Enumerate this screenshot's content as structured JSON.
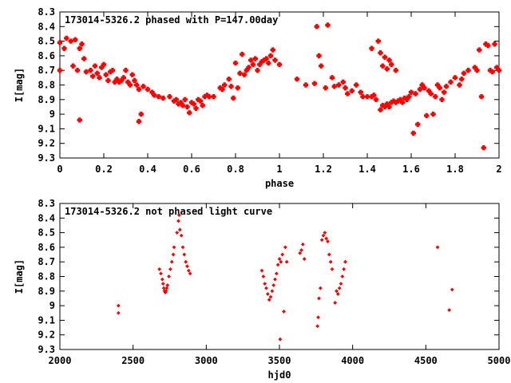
{
  "chart_data": [
    {
      "type": "scatter",
      "title": "173014-5326.2 phased with P=147.00day",
      "xlabel": "phase",
      "ylabel": "I[mag]",
      "xlim": [
        0,
        2
      ],
      "ylim": [
        8.3,
        9.3
      ],
      "y_inverted": true,
      "marker": "cross",
      "color": "#ff0000",
      "xticks": [
        0,
        0.2,
        0.4,
        0.6,
        0.8,
        1,
        1.2,
        1.4,
        1.6,
        1.8,
        2
      ],
      "xtick_labels": [
        "0",
        "0.2",
        "0.4",
        "0.6",
        "0.8",
        "1",
        "1.2",
        "1.4",
        "1.6",
        "1.8",
        "2"
      ],
      "yticks": [
        8.3,
        8.4,
        8.5,
        8.6,
        8.7,
        8.8,
        8.9,
        9.0,
        9.1,
        9.2,
        9.3
      ],
      "ytick_labels": [
        "8.3",
        "8.4",
        "8.5",
        "8.6",
        "8.7",
        "8.8",
        "8.9",
        "9",
        "9.1",
        "9.2",
        "9.3"
      ],
      "points": [
        [
          0.0,
          8.51
        ],
        [
          0.0,
          8.7
        ],
        [
          0.02,
          8.55
        ],
        [
          0.03,
          8.48
        ],
        [
          0.05,
          8.5
        ],
        [
          0.06,
          8.67
        ],
        [
          0.07,
          8.49
        ],
        [
          0.08,
          8.7
        ],
        [
          0.09,
          8.55
        ],
        [
          0.1,
          8.52
        ],
        [
          0.09,
          9.04
        ],
        [
          0.11,
          8.62
        ],
        [
          0.12,
          8.71
        ],
        [
          0.14,
          8.7
        ],
        [
          0.15,
          8.74
        ],
        [
          0.16,
          8.67
        ],
        [
          0.17,
          8.72
        ],
        [
          0.18,
          8.75
        ],
        [
          0.19,
          8.68
        ],
        [
          0.2,
          8.66
        ],
        [
          0.21,
          8.73
        ],
        [
          0.22,
          8.77
        ],
        [
          0.23,
          8.71
        ],
        [
          0.24,
          8.7
        ],
        [
          0.25,
          8.78
        ],
        [
          0.26,
          8.76
        ],
        [
          0.27,
          8.78
        ],
        [
          0.28,
          8.77
        ],
        [
          0.29,
          8.75
        ],
        [
          0.3,
          8.7
        ],
        [
          0.31,
          8.78
        ],
        [
          0.32,
          8.8
        ],
        [
          0.33,
          8.73
        ],
        [
          0.34,
          8.77
        ],
        [
          0.35,
          8.8
        ],
        [
          0.36,
          8.83
        ],
        [
          0.36,
          9.05
        ],
        [
          0.37,
          9.0
        ],
        [
          0.38,
          8.81
        ],
        [
          0.4,
          8.83
        ],
        [
          0.42,
          8.85
        ],
        [
          0.43,
          8.87
        ],
        [
          0.45,
          8.88
        ],
        [
          0.47,
          8.89
        ],
        [
          0.5,
          8.88
        ],
        [
          0.52,
          8.91
        ],
        [
          0.53,
          8.9
        ],
        [
          0.54,
          8.93
        ],
        [
          0.55,
          8.92
        ],
        [
          0.56,
          8.94
        ],
        [
          0.57,
          8.9
        ],
        [
          0.58,
          8.95
        ],
        [
          0.59,
          8.99
        ],
        [
          0.6,
          8.92
        ],
        [
          0.61,
          8.93
        ],
        [
          0.62,
          8.96
        ],
        [
          0.63,
          8.9
        ],
        [
          0.64,
          8.91
        ],
        [
          0.65,
          8.94
        ],
        [
          0.66,
          8.88
        ],
        [
          0.67,
          8.87
        ],
        [
          0.68,
          8.88
        ],
        [
          0.7,
          8.88
        ],
        [
          0.73,
          8.82
        ],
        [
          0.74,
          8.83
        ],
        [
          0.75,
          8.8
        ],
        [
          0.77,
          8.76
        ],
        [
          0.78,
          8.81
        ],
        [
          0.79,
          8.89
        ],
        [
          0.8,
          8.65
        ],
        [
          0.81,
          8.82
        ],
        [
          0.82,
          8.72
        ],
        [
          0.83,
          8.59
        ],
        [
          0.84,
          8.73
        ],
        [
          0.85,
          8.7
        ],
        [
          0.86,
          8.68
        ],
        [
          0.87,
          8.63
        ],
        [
          0.88,
          8.66
        ],
        [
          0.89,
          8.62
        ],
        [
          0.9,
          8.7
        ],
        [
          0.91,
          8.66
        ],
        [
          0.92,
          8.64
        ],
        [
          0.93,
          8.63
        ],
        [
          0.94,
          8.62
        ],
        [
          0.95,
          8.65
        ],
        [
          0.96,
          8.6
        ],
        [
          0.97,
          8.56
        ],
        [
          0.98,
          8.63
        ],
        [
          1.0,
          8.66
        ],
        [
          1.08,
          8.76
        ],
        [
          1.12,
          8.8
        ],
        [
          1.16,
          8.79
        ],
        [
          1.17,
          8.4
        ],
        [
          1.18,
          8.6
        ],
        [
          1.19,
          8.67
        ],
        [
          1.21,
          8.82
        ],
        [
          1.22,
          8.39
        ],
        [
          1.24,
          8.75
        ],
        [
          1.25,
          8.81
        ],
        [
          1.27,
          8.8
        ],
        [
          1.29,
          8.78
        ],
        [
          1.3,
          8.82
        ],
        [
          1.31,
          8.86
        ],
        [
          1.33,
          8.84
        ],
        [
          1.35,
          8.8
        ],
        [
          1.37,
          8.85
        ],
        [
          1.38,
          8.88
        ],
        [
          1.4,
          8.88
        ],
        [
          1.42,
          8.88
        ],
        [
          1.43,
          8.87
        ],
        [
          1.42,
          8.55
        ],
        [
          1.45,
          8.5
        ],
        [
          1.44,
          8.9
        ],
        [
          1.46,
          8.97
        ],
        [
          1.47,
          8.94
        ],
        [
          1.48,
          8.95
        ],
        [
          1.49,
          8.93
        ],
        [
          1.5,
          8.95
        ],
        [
          1.51,
          8.92
        ],
        [
          1.52,
          8.91
        ],
        [
          1.53,
          8.92
        ],
        [
          1.54,
          8.91
        ],
        [
          1.55,
          8.9
        ],
        [
          1.56,
          8.92
        ],
        [
          1.57,
          8.89
        ],
        [
          1.58,
          8.9
        ],
        [
          1.59,
          8.88
        ],
        [
          1.6,
          8.85
        ],
        [
          1.61,
          9.13
        ],
        [
          1.62,
          8.86
        ],
        [
          1.63,
          9.07
        ],
        [
          1.64,
          8.83
        ],
        [
          1.65,
          8.8
        ],
        [
          1.66,
          8.82
        ],
        [
          1.67,
          9.01
        ],
        [
          1.68,
          8.84
        ],
        [
          1.69,
          8.86
        ],
        [
          1.7,
          9.0
        ],
        [
          1.71,
          8.88
        ],
        [
          1.72,
          8.8
        ],
        [
          1.73,
          8.82
        ],
        [
          1.74,
          8.9
        ],
        [
          1.75,
          8.85
        ],
        [
          1.76,
          8.81
        ],
        [
          1.78,
          8.78
        ],
        [
          1.8,
          8.75
        ],
        [
          1.82,
          8.8
        ],
        [
          1.83,
          8.76
        ],
        [
          1.84,
          8.72
        ],
        [
          1.86,
          8.7
        ],
        [
          1.89,
          8.68
        ],
        [
          1.9,
          8.7
        ],
        [
          1.91,
          8.56
        ],
        [
          1.92,
          8.88
        ],
        [
          1.93,
          9.23
        ],
        [
          1.94,
          8.52
        ],
        [
          1.95,
          8.53
        ],
        [
          1.96,
          8.7
        ],
        [
          1.97,
          8.71
        ],
        [
          1.98,
          8.52
        ],
        [
          1.99,
          8.68
        ],
        [
          2.0,
          8.7
        ],
        [
          1.47,
          8.67
        ],
        [
          1.49,
          8.69
        ],
        [
          1.51,
          8.66
        ],
        [
          1.53,
          8.7
        ],
        [
          1.46,
          8.58
        ],
        [
          1.48,
          8.61
        ],
        [
          1.5,
          8.63
        ]
      ]
    },
    {
      "type": "scatter",
      "title": "173014-5326.2 not phased light curve",
      "xlabel": "hjd0",
      "ylabel": "I[mag]",
      "xlim": [
        2000,
        5000
      ],
      "ylim": [
        8.3,
        9.3
      ],
      "y_inverted": true,
      "marker": "diamond",
      "color": "#ff0000",
      "xticks": [
        2000,
        2500,
        3000,
        3500,
        4000,
        4500,
        5000
      ],
      "xtick_labels": [
        "2000",
        "2500",
        "3000",
        "3500",
        "4000",
        "4500",
        "5000"
      ],
      "yticks": [
        8.3,
        8.4,
        8.5,
        8.6,
        8.7,
        8.8,
        8.9,
        9.0,
        9.1,
        9.2,
        9.3
      ],
      "ytick_labels": [
        "8.3",
        "8.4",
        "8.5",
        "8.6",
        "8.7",
        "8.8",
        "8.9",
        "9",
        "9.1",
        "9.2",
        "9.3"
      ],
      "points": [
        [
          2400,
          9.0
        ],
        [
          2400,
          9.05
        ],
        [
          2680,
          8.75
        ],
        [
          2690,
          8.78
        ],
        [
          2700,
          8.82
        ],
        [
          2705,
          8.85
        ],
        [
          2710,
          8.88
        ],
        [
          2715,
          8.9
        ],
        [
          2720,
          8.91
        ],
        [
          2725,
          8.9
        ],
        [
          2730,
          8.88
        ],
        [
          2735,
          8.86
        ],
        [
          2745,
          8.8
        ],
        [
          2755,
          8.75
        ],
        [
          2765,
          8.7
        ],
        [
          2775,
          8.65
        ],
        [
          2780,
          8.6
        ],
        [
          2800,
          8.5
        ],
        [
          2810,
          8.42
        ],
        [
          2815,
          8.38
        ],
        [
          2820,
          8.48
        ],
        [
          2830,
          8.52
        ],
        [
          2840,
          8.6
        ],
        [
          2850,
          8.65
        ],
        [
          2860,
          8.7
        ],
        [
          2870,
          8.73
        ],
        [
          2880,
          8.76
        ],
        [
          2890,
          8.78
        ],
        [
          3380,
          8.76
        ],
        [
          3390,
          8.8
        ],
        [
          3400,
          8.85
        ],
        [
          3410,
          8.88
        ],
        [
          3420,
          8.92
        ],
        [
          3430,
          8.96
        ],
        [
          3440,
          8.94
        ],
        [
          3450,
          8.9
        ],
        [
          3460,
          8.86
        ],
        [
          3470,
          8.82
        ],
        [
          3480,
          8.78
        ],
        [
          3490,
          8.72
        ],
        [
          3500,
          8.68
        ],
        [
          3505,
          9.23
        ],
        [
          3510,
          8.7
        ],
        [
          3520,
          8.65
        ],
        [
          3530,
          9.04
        ],
        [
          3540,
          8.6
        ],
        [
          3550,
          8.7
        ],
        [
          3640,
          8.64
        ],
        [
          3650,
          8.62
        ],
        [
          3660,
          8.58
        ],
        [
          3670,
          8.68
        ],
        [
          3760,
          9.14
        ],
        [
          3765,
          9.08
        ],
        [
          3770,
          8.95
        ],
        [
          3780,
          8.88
        ],
        [
          3790,
          8.55
        ],
        [
          3800,
          8.52
        ],
        [
          3810,
          8.5
        ],
        [
          3820,
          8.54
        ],
        [
          3830,
          8.56
        ],
        [
          3840,
          8.65
        ],
        [
          3850,
          8.7
        ],
        [
          3860,
          8.75
        ],
        [
          3880,
          8.98
        ],
        [
          3890,
          8.9
        ],
        [
          3900,
          8.92
        ],
        [
          3910,
          8.88
        ],
        [
          3920,
          8.85
        ],
        [
          3930,
          8.8
        ],
        [
          3940,
          8.75
        ],
        [
          3950,
          8.7
        ],
        [
          4580,
          8.6
        ],
        [
          4660,
          9.03
        ],
        [
          4680,
          8.89
        ]
      ]
    }
  ]
}
